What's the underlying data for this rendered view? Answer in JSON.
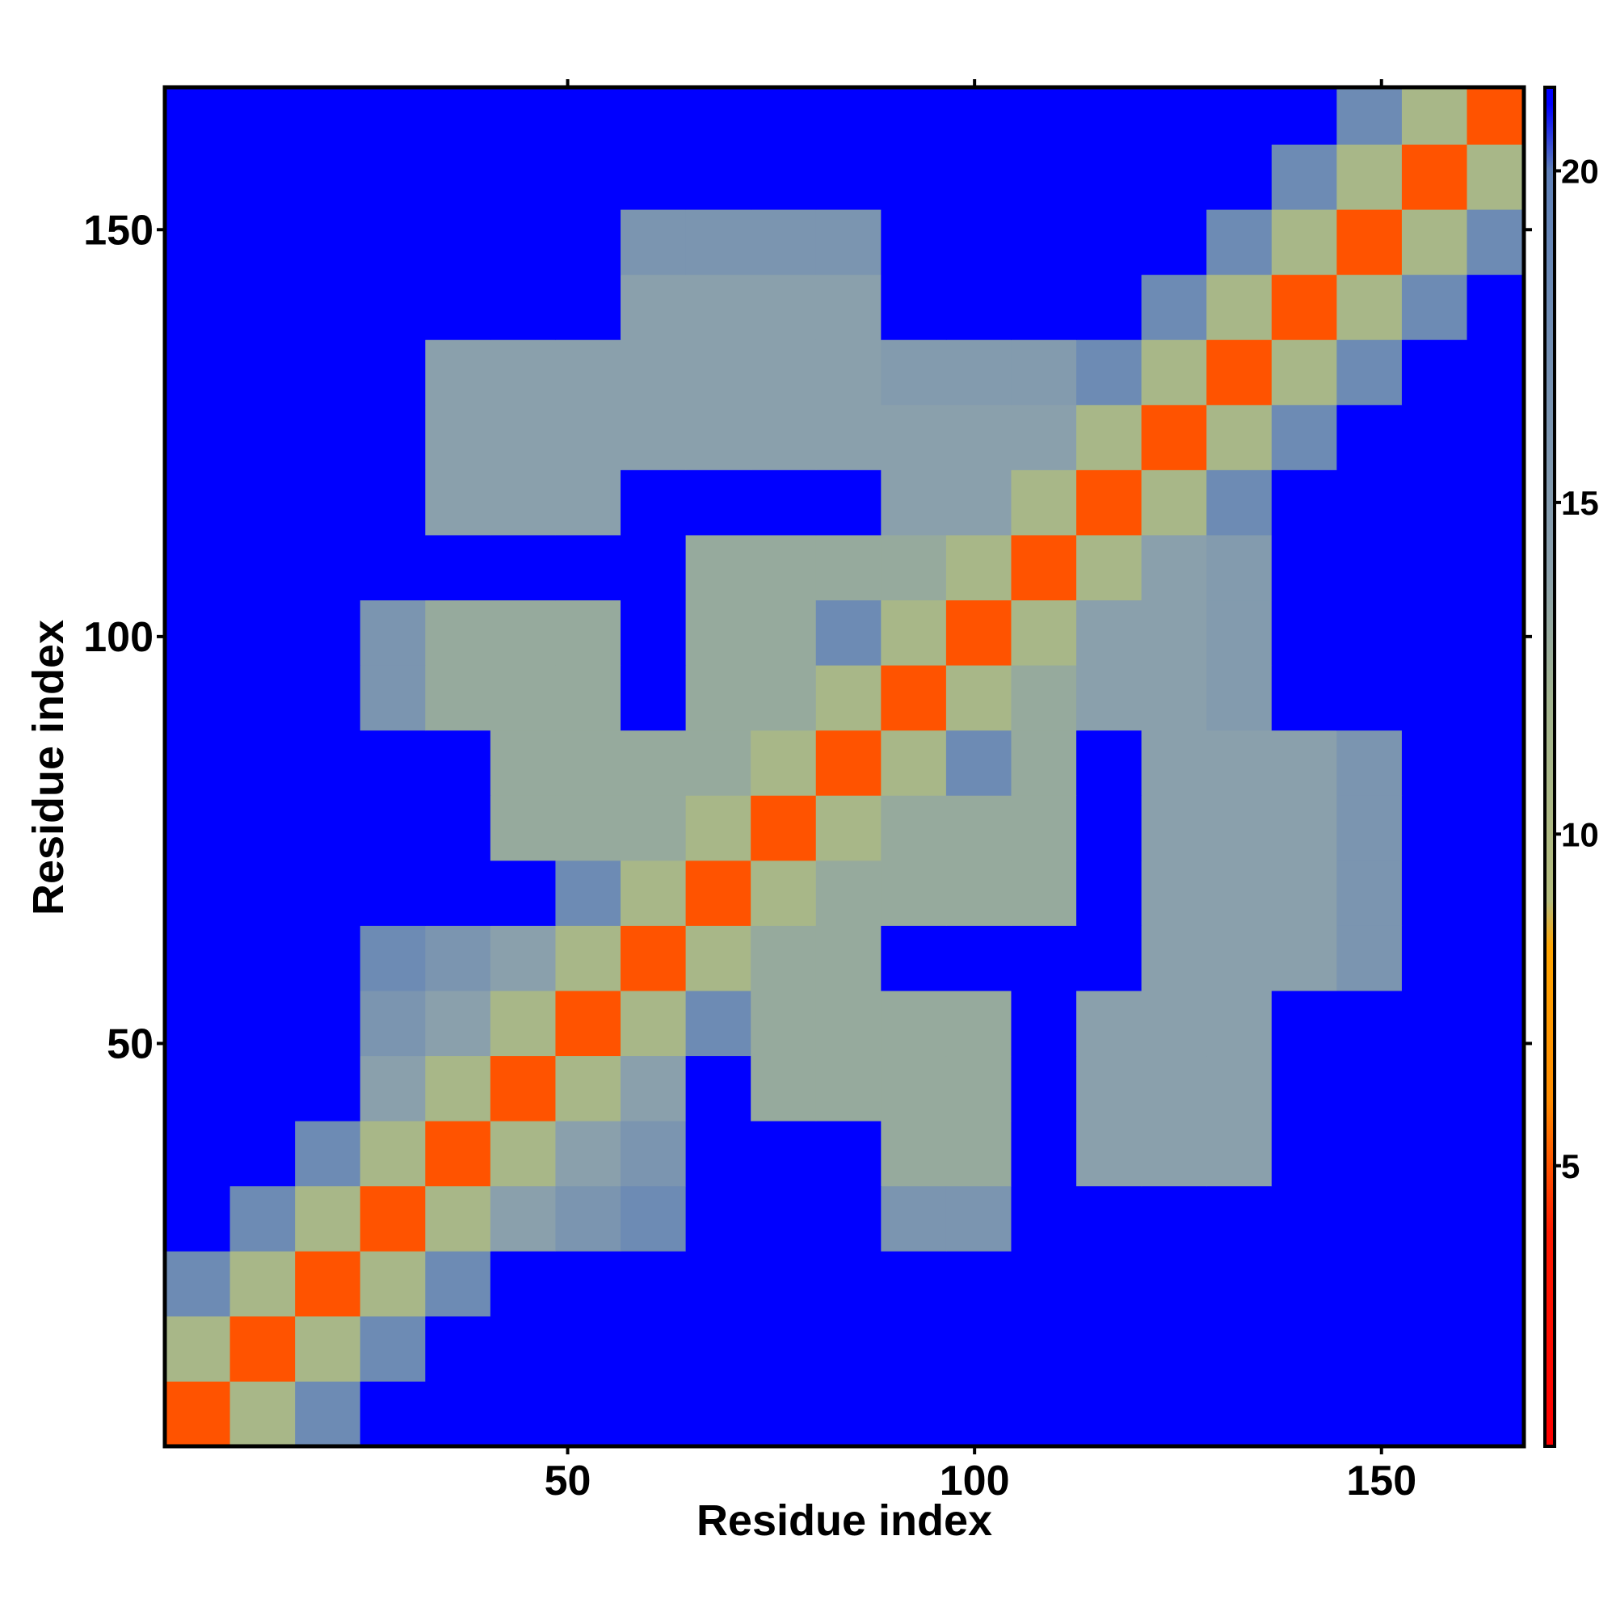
{
  "chart_data": {
    "type": "heatmap",
    "xlabel": "Residue index",
    "ylabel": "Residue index",
    "xlim": [
      0.5,
      167.5
    ],
    "ylim": [
      0.5,
      167.5
    ],
    "xticks": [
      50,
      100,
      150
    ],
    "yticks": [
      50,
      100,
      150
    ],
    "xbins": [
      0.5,
      8.5,
      16.5,
      24.5,
      32.5,
      40.5,
      48.5,
      56.5,
      64.5,
      72.5,
      80.5,
      88.5,
      96.5,
      104.5,
      112.5,
      120.5,
      128.5,
      136.5,
      144.5,
      152.5,
      160.5,
      167.5
    ],
    "ybins": [
      0.5,
      8.5,
      16.5,
      24.5,
      32.5,
      40.5,
      48.5,
      56.5,
      64.5,
      72.5,
      80.5,
      88.5,
      96.5,
      104.5,
      112.5,
      120.5,
      128.5,
      136.5,
      144.5,
      152.5,
      160.5,
      167.5
    ],
    "values": [
      [
        5,
        11,
        18,
        21,
        21,
        21,
        21,
        21,
        21,
        21,
        21,
        21,
        21,
        21,
        21,
        21,
        21,
        21,
        21,
        21,
        21
      ],
      [
        11,
        5,
        11,
        18,
        21,
        21,
        21,
        21,
        21,
        21,
        21,
        21,
        21,
        21,
        21,
        21,
        21,
        21,
        21,
        21,
        21
      ],
      [
        18,
        11,
        5,
        11,
        18,
        21,
        21,
        21,
        21,
        21,
        21,
        21,
        21,
        21,
        21,
        21,
        21,
        21,
        21,
        21,
        21
      ],
      [
        21,
        18,
        11,
        5,
        11,
        14,
        16,
        18,
        21,
        21,
        21,
        16,
        16,
        21,
        21,
        21,
        21,
        21,
        21,
        21,
        21
      ],
      [
        21,
        21,
        18,
        11,
        5,
        11,
        14,
        16,
        21,
        21,
        21,
        13,
        13,
        21,
        14,
        14,
        14,
        21,
        21,
        21,
        21
      ],
      [
        21,
        21,
        21,
        14,
        11,
        5,
        11,
        14,
        21,
        13,
        13,
        13,
        13,
        21,
        14,
        14,
        14,
        21,
        21,
        21,
        21
      ],
      [
        21,
        21,
        21,
        16,
        14,
        11,
        5,
        11,
        18,
        13,
        13,
        13,
        13,
        21,
        14,
        14,
        14,
        21,
        21,
        21,
        21
      ],
      [
        21,
        21,
        21,
        18,
        16,
        14,
        11,
        5,
        11,
        13,
        13,
        21,
        21,
        21,
        21,
        14,
        14,
        14,
        16,
        21,
        21
      ],
      [
        21,
        21,
        21,
        21,
        21,
        21,
        18,
        11,
        5,
        11,
        13,
        13,
        13,
        13,
        21,
        14,
        14,
        14,
        16,
        21,
        21
      ],
      [
        21,
        21,
        21,
        21,
        21,
        13,
        13,
        13,
        11,
        5,
        11,
        13,
        13,
        13,
        21,
        14,
        14,
        14,
        16,
        21,
        21
      ],
      [
        21,
        21,
        21,
        21,
        21,
        13,
        13,
        13,
        13,
        11,
        5,
        11,
        18,
        13,
        21,
        14,
        14,
        14,
        16,
        21,
        21
      ],
      [
        21,
        21,
        21,
        16,
        13,
        13,
        13,
        21,
        13,
        13,
        11,
        5,
        11,
        13,
        14,
        14,
        15,
        21,
        21,
        21,
        21
      ],
      [
        21,
        21,
        21,
        16,
        13,
        13,
        13,
        21,
        13,
        13,
        18,
        11,
        5,
        11,
        14,
        14,
        15,
        21,
        21,
        21,
        21
      ],
      [
        21,
        21,
        21,
        21,
        21,
        21,
        21,
        21,
        13,
        13,
        13,
        13,
        11,
        5,
        11,
        14,
        15,
        21,
        21,
        21,
        21
      ],
      [
        21,
        21,
        21,
        21,
        14,
        14,
        14,
        21,
        21,
        21,
        21,
        14,
        14,
        11,
        5,
        11,
        18,
        21,
        21,
        21,
        21
      ],
      [
        21,
        21,
        21,
        21,
        14,
        14,
        14,
        14,
        14,
        14,
        14,
        14,
        14,
        14,
        11,
        5,
        11,
        18,
        21,
        21,
        21
      ],
      [
        21,
        21,
        21,
        21,
        14,
        14,
        14,
        14,
        14,
        14,
        14,
        15,
        15,
        15,
        18,
        11,
        5,
        11,
        18,
        21,
        21
      ],
      [
        21,
        21,
        21,
        21,
        21,
        21,
        21,
        14,
        14,
        14,
        14,
        21,
        21,
        21,
        21,
        18,
        11,
        5,
        11,
        18,
        21
      ],
      [
        21,
        21,
        21,
        21,
        21,
        21,
        21,
        16,
        16,
        16,
        16,
        21,
        21,
        21,
        21,
        21,
        18,
        11,
        5,
        11,
        18
      ],
      [
        21,
        21,
        21,
        21,
        21,
        21,
        21,
        21,
        21,
        21,
        21,
        21,
        21,
        21,
        21,
        21,
        21,
        18,
        11,
        5,
        11
      ],
      [
        21,
        21,
        21,
        21,
        21,
        21,
        21,
        21,
        21,
        21,
        21,
        21,
        21,
        21,
        21,
        21,
        21,
        21,
        18,
        11,
        5
      ]
    ],
    "clim": [
      0.77,
      21.26
    ],
    "cticks": [
      5,
      10,
      15,
      20
    ],
    "colorscale": [
      [
        0.77,
        "#ff0000"
      ],
      [
        4,
        "#ff1a00"
      ],
      [
        6,
        "#ff8c00"
      ],
      [
        8.3,
        "#ffa500"
      ],
      [
        9,
        "#b4bc7c"
      ],
      [
        12,
        "#a2b48e"
      ],
      [
        14,
        "#8aa0ac"
      ],
      [
        20,
        "#5e80b8"
      ],
      [
        21,
        "#0000ff"
      ]
    ]
  }
}
